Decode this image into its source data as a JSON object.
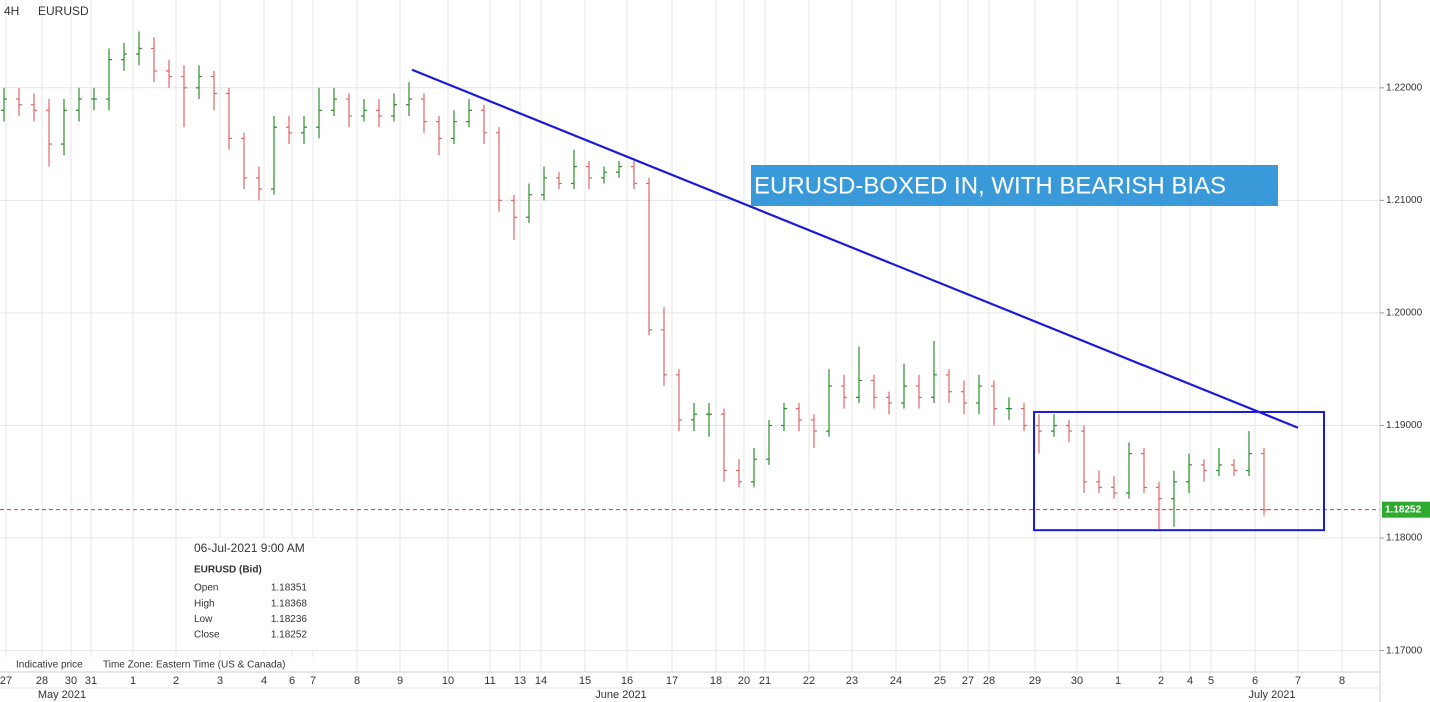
{
  "chart_data": {
    "type": "ohlc",
    "header": {
      "timeframe": "4H",
      "symbol": "EURUSD"
    },
    "x": [
      0.4,
      1.9,
      3.4,
      4.9,
      6.4,
      7.9,
      9.4,
      10.9,
      12.4,
      13.9,
      15.4,
      16.9,
      18.4,
      19.9,
      21.4,
      22.9,
      24.4,
      25.9,
      27.4,
      28.9,
      30.4,
      31.9,
      33.4,
      34.9,
      36.4,
      37.9,
      39.4,
      40.9,
      42.4,
      43.9,
      45.4,
      46.9,
      48.4,
      49.9,
      51.4,
      52.9,
      54.4,
      55.9,
      57.4,
      58.9,
      60.4,
      61.9,
      63.4,
      64.9,
      66.4,
      67.9,
      69.4,
      70.9,
      72.4,
      73.9,
      75.4,
      76.9,
      78.4,
      79.9,
      81.4,
      82.9,
      84.4,
      85.9,
      87.4,
      88.9,
      90.4,
      91.9,
      93.4,
      94.9,
      96.4,
      97.9,
      99.4,
      100.9,
      102.4,
      103.9,
      105.4,
      106.9,
      108.4,
      109.9,
      111.4,
      112.9,
      114.4,
      115.9,
      117.4,
      118.9,
      120.4,
      121.9,
      123.4,
      124.9,
      126.4
    ],
    "open": [
      1.218,
      1.219,
      1.2185,
      1.218,
      1.215,
      1.218,
      1.219,
      1.219,
      1.2225,
      1.223,
      1.2235,
      1.2215,
      1.221,
      1.22,
      1.221,
      1.2195,
      1.2155,
      1.212,
      1.211,
      1.2165,
      1.216,
      1.2165,
      1.218,
      1.219,
      1.2175,
      1.218,
      1.2175,
      1.2185,
      1.219,
      1.217,
      1.2155,
      1.217,
      1.218,
      1.216,
      1.21,
      1.2085,
      1.2105,
      1.212,
      1.2115,
      1.213,
      1.212,
      1.2125,
      1.213,
      1.2115,
      1.1985,
      1.1945,
      1.1905,
      1.191,
      1.191,
      1.186,
      1.185,
      1.187,
      1.19,
      1.1915,
      1.1905,
      1.1895,
      1.1935,
      1.1925,
      1.194,
      1.1925,
      1.192,
      1.1935,
      1.1925,
      1.1945,
      1.193,
      1.192,
      1.1935,
      1.1915,
      1.1915,
      1.19,
      1.1895,
      1.19,
      1.1895,
      1.185,
      1.1845,
      1.184,
      1.1875,
      1.1845,
      1.1835,
      1.185,
      1.1865,
      1.186,
      1.1865,
      1.186,
      1.1875
    ],
    "high": [
      1.22,
      1.22,
      1.2195,
      1.219,
      1.219,
      1.22,
      1.22,
      1.2235,
      1.224,
      1.225,
      1.2245,
      1.2225,
      1.222,
      1.222,
      1.2215,
      1.22,
      1.216,
      1.213,
      1.2175,
      1.2175,
      1.2175,
      1.22,
      1.22,
      1.2195,
      1.219,
      1.219,
      1.2195,
      1.2205,
      1.2195,
      1.2175,
      1.218,
      1.219,
      1.2185,
      1.2165,
      1.2105,
      1.2115,
      1.213,
      1.2125,
      1.2145,
      1.2135,
      1.213,
      1.2135,
      1.2135,
      1.212,
      1.2005,
      1.195,
      1.192,
      1.192,
      1.1915,
      1.187,
      1.188,
      1.1905,
      1.192,
      1.192,
      1.191,
      1.195,
      1.1945,
      1.197,
      1.1945,
      1.193,
      1.1955,
      1.1945,
      1.1975,
      1.195,
      1.194,
      1.1945,
      1.194,
      1.1925,
      1.192,
      1.191,
      1.191,
      1.1905,
      1.19,
      1.186,
      1.1855,
      1.1885,
      1.188,
      1.185,
      1.186,
      1.1875,
      1.187,
      1.188,
      1.187,
      1.1895,
      1.188
    ],
    "low": [
      1.217,
      1.2175,
      1.217,
      1.213,
      1.214,
      1.217,
      1.218,
      1.218,
      1.2215,
      1.222,
      1.2205,
      1.22,
      1.2165,
      1.219,
      1.218,
      1.2145,
      1.211,
      1.21,
      1.2105,
      1.215,
      1.215,
      1.2155,
      1.2175,
      1.2165,
      1.217,
      1.2165,
      1.217,
      1.2175,
      1.216,
      1.214,
      1.215,
      1.2165,
      1.215,
      1.209,
      1.2065,
      1.208,
      1.21,
      1.211,
      1.211,
      1.211,
      1.2115,
      1.212,
      1.211,
      1.198,
      1.1935,
      1.1895,
      1.1895,
      1.189,
      1.185,
      1.1845,
      1.1845,
      1.1865,
      1.1895,
      1.1895,
      1.188,
      1.189,
      1.1915,
      1.192,
      1.1915,
      1.191,
      1.1915,
      1.1915,
      1.192,
      1.192,
      1.191,
      1.191,
      1.19,
      1.1905,
      1.1895,
      1.1875,
      1.189,
      1.1885,
      1.184,
      1.184,
      1.1835,
      1.1835,
      1.184,
      1.1808,
      1.181,
      1.184,
      1.185,
      1.1855,
      1.1855,
      1.1855,
      1.182
    ],
    "close": [
      1.219,
      1.2185,
      1.218,
      1.215,
      1.218,
      1.219,
      1.219,
      1.2225,
      1.223,
      1.2235,
      1.2215,
      1.221,
      1.22,
      1.221,
      1.2195,
      1.2155,
      1.212,
      1.211,
      1.2165,
      1.216,
      1.2165,
      1.218,
      1.219,
      1.2175,
      1.218,
      1.2175,
      1.2185,
      1.219,
      1.217,
      1.2155,
      1.217,
      1.218,
      1.216,
      1.21,
      1.2085,
      1.2105,
      1.212,
      1.2115,
      1.213,
      1.212,
      1.2125,
      1.213,
      1.2115,
      1.1985,
      1.1945,
      1.1905,
      1.191,
      1.191,
      1.186,
      1.185,
      1.187,
      1.19,
      1.1915,
      1.1905,
      1.1895,
      1.1935,
      1.1925,
      1.194,
      1.1925,
      1.192,
      1.1935,
      1.1925,
      1.1945,
      1.193,
      1.192,
      1.1935,
      1.1915,
      1.1915,
      1.19,
      1.1895,
      1.19,
      1.1895,
      1.185,
      1.1845,
      1.184,
      1.1875,
      1.1845,
      1.1835,
      1.185,
      1.1865,
      1.186,
      1.1865,
      1.186,
      1.1875,
      1.1825
    ],
    "up_color": "#2e8b2e",
    "down_color": "#e06666",
    "xlim": [
      0,
      138
    ],
    "xticks": [
      {
        "value": 0.6,
        "label": "27"
      },
      {
        "value": 4.2,
        "label": "28"
      },
      {
        "value": 7.1,
        "label": "30"
      },
      {
        "value": 9.1,
        "label": "31"
      },
      {
        "value": 13.3,
        "label": "1"
      },
      {
        "value": 17.6,
        "label": "2"
      },
      {
        "value": 22.0,
        "label": "3"
      },
      {
        "value": 26.4,
        "label": "4"
      },
      {
        "value": 29.2,
        "label": "6"
      },
      {
        "value": 31.3,
        "label": "7"
      },
      {
        "value": 35.7,
        "label": "8"
      },
      {
        "value": 40.0,
        "label": "9"
      },
      {
        "value": 44.8,
        "label": "10"
      },
      {
        "value": 49.0,
        "label": "11"
      },
      {
        "value": 52.0,
        "label": "13"
      },
      {
        "value": 54.1,
        "label": "14"
      },
      {
        "value": 58.5,
        "label": "15"
      },
      {
        "value": 62.7,
        "label": "16"
      },
      {
        "value": 67.2,
        "label": "17"
      },
      {
        "value": 71.6,
        "label": "18"
      },
      {
        "value": 74.4,
        "label": "20"
      },
      {
        "value": 76.5,
        "label": "21"
      },
      {
        "value": 80.9,
        "label": "22"
      },
      {
        "value": 85.2,
        "label": "23"
      },
      {
        "value": 89.6,
        "label": "24"
      },
      {
        "value": 94.0,
        "label": "25"
      },
      {
        "value": 96.8,
        "label": "27"
      },
      {
        "value": 98.9,
        "label": "28"
      },
      {
        "value": 103.5,
        "label": "29"
      },
      {
        "value": 107.7,
        "label": "30"
      },
      {
        "value": 111.8,
        "label": "1"
      },
      {
        "value": 116.1,
        "label": "2"
      },
      {
        "value": 119.0,
        "label": "4"
      },
      {
        "value": 121.1,
        "label": "5"
      },
      {
        "value": 125.5,
        "label": "6"
      },
      {
        "value": 129.8,
        "label": "7"
      },
      {
        "value": 134.2,
        "label": "8"
      }
    ],
    "month_ticks": [
      {
        "value": 6.2,
        "label": "May 2021"
      },
      {
        "value": 62.1,
        "label": "June 2021"
      },
      {
        "value": 127.2,
        "label": "July 2021"
      }
    ],
    "ylim": [
      1.1681,
      1.2278
    ],
    "yticks": [
      {
        "value": 1.17,
        "label": "1.17000"
      },
      {
        "value": 1.18,
        "label": "1.18000"
      },
      {
        "value": 1.19,
        "label": "1.19000"
      },
      {
        "value": 1.2,
        "label": "1.20000"
      },
      {
        "value": 1.21,
        "label": "1.21000"
      },
      {
        "value": 1.22,
        "label": "1.22000"
      }
    ],
    "grid": true,
    "last_price": {
      "value": 1.18252,
      "color": "#e53935",
      "label_color": "#2eaa2e"
    },
    "trendline": {
      "x": [
        41.2,
        129.8
      ],
      "y": [
        1.2216,
        1.1898
      ],
      "color": "#1a1adb"
    },
    "box": {
      "x": [
        103.4,
        132.4
      ],
      "y": [
        1.1807,
        1.1912
      ],
      "color": "#1a1adb"
    },
    "annotation": "EURUSD-BOXED IN, WITH BEARISH BIAS",
    "info": {
      "timestamp": "06-Jul-2021 9:00 AM",
      "instrument": "EURUSD (Bid)",
      "rows": [
        {
          "label": "Open",
          "value": 1.18351
        },
        {
          "label": "High",
          "value": 1.18368
        },
        {
          "label": "Low",
          "value": 1.18236
        },
        {
          "label": "Close",
          "value": 1.18252
        }
      ]
    },
    "footer": {
      "note": "Indicative price",
      "timezone": "Time Zone: Eastern Time (US & Canada)"
    }
  }
}
